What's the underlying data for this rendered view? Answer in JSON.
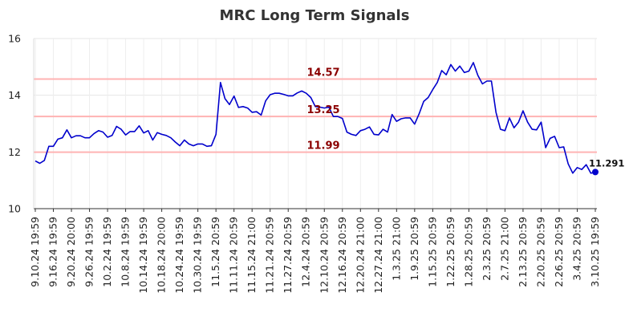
{
  "chart_data": {
    "type": "line",
    "title": "MRC Long Term Signals",
    "xlabel": "",
    "ylabel": "",
    "ylim": [
      10,
      16
    ],
    "yticks": [
      10,
      12,
      14,
      16
    ],
    "grid": true,
    "line_color": "#0000cc",
    "reference_color": "#ffb3b3",
    "x_tick_labels": [
      "9.10.24 19:59",
      "9.16.24 19:59",
      "9.20.24 20:00",
      "9.26.24 19:59",
      "10.2.24 19:59",
      "10.8.24 19:59",
      "10.14.24 19:59",
      "10.18.24 20:00",
      "10.24.24 19:59",
      "10.30.24 19:59",
      "11.5.24 20:59",
      "11.11.24 20:59",
      "11.15.24 21:00",
      "11.21.24 20:59",
      "11.27.24 20:59",
      "12.4.24 20:59",
      "12.10.24 20:59",
      "12.16.24 20:59",
      "12.20.24 21:00",
      "12.27.24 21:00",
      "1.3.25 21:00",
      "1.9.25 20:59",
      "1.15.25 20:59",
      "1.22.25 20:59",
      "1.28.25 20:59",
      "2.3.25 20:59",
      "2.7.25 21:00",
      "2.13.25 20:59",
      "2.20.25 20:59",
      "2.26.25 20:59",
      "3.4.25 20:59",
      "3.10.25 19:59"
    ],
    "reference_lines": [
      {
        "value": 14.57,
        "label": "14.57"
      },
      {
        "value": 13.25,
        "label": "13.25"
      },
      {
        "value": 11.99,
        "label": "11.99"
      }
    ],
    "last_value_label": "11.291",
    "series": [
      {
        "values": [
          11.68,
          11.6,
          11.7,
          12.2,
          12.2,
          12.45,
          12.5,
          12.78,
          12.5,
          12.57,
          12.57,
          12.5,
          12.5,
          12.65,
          12.75,
          12.7,
          12.52,
          12.58,
          12.9,
          12.8,
          12.6,
          12.72,
          12.72,
          12.92,
          12.67,
          12.75,
          12.42,
          12.68,
          12.62,
          12.58,
          12.5,
          12.35,
          12.22,
          12.42,
          12.28,
          12.22,
          12.28,
          12.28,
          12.2,
          12.22,
          12.62,
          14.45,
          13.88,
          13.67,
          13.97,
          13.57,
          13.6,
          13.55,
          13.4,
          13.42,
          13.3,
          13.8,
          14.02,
          14.07,
          14.07,
          14.03,
          13.98,
          13.98,
          14.08,
          14.15,
          14.07,
          13.92,
          13.6,
          13.58,
          13.55,
          13.58,
          13.25,
          13.25,
          13.18,
          12.7,
          12.62,
          12.58,
          12.75,
          12.8,
          12.88,
          12.62,
          12.6,
          12.8,
          12.7,
          13.32,
          13.08,
          13.17,
          13.2,
          13.2,
          12.98,
          13.35,
          13.78,
          13.92,
          14.2,
          14.45,
          14.87,
          14.72,
          15.08,
          14.85,
          15.03,
          14.8,
          14.85,
          15.15,
          14.7,
          14.4,
          14.5,
          14.5,
          13.4,
          12.8,
          12.75,
          13.2,
          12.85,
          13.05,
          13.45,
          13.05,
          12.8,
          12.78,
          13.05,
          12.15,
          12.48,
          12.55,
          12.15,
          12.18,
          11.58,
          11.25,
          11.45,
          11.38,
          11.55,
          11.25,
          11.291
        ]
      }
    ]
  }
}
